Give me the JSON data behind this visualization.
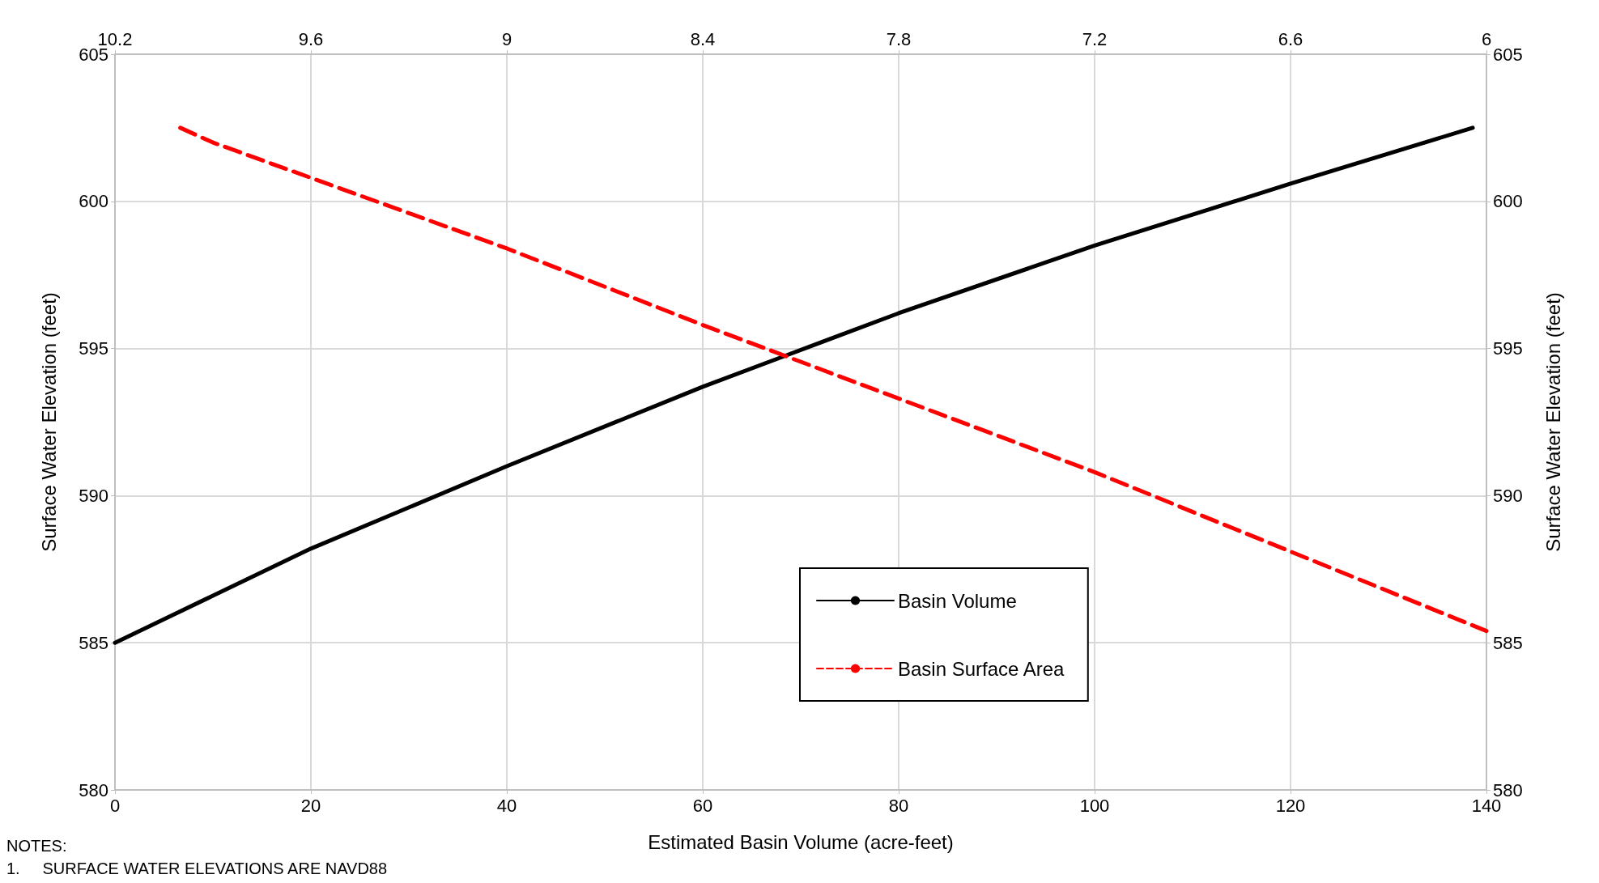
{
  "chart_data": {
    "type": "line",
    "xlabel": "Estimated Basin Volume (acre-feet)",
    "ylabel": "Surface Water Elevation (feet)",
    "y2label": "Surface Water Elevation (feet)",
    "xlim": [
      0,
      140
    ],
    "xticks": [
      0,
      20,
      40,
      60,
      80,
      100,
      120,
      140
    ],
    "x2lim": [
      10.2,
      6
    ],
    "x2ticks": [
      10.2,
      9.6,
      9,
      8.4,
      7.8,
      7.2,
      6.6,
      6
    ],
    "ylim": [
      580,
      605
    ],
    "yticks": [
      580,
      585,
      590,
      595,
      600,
      605
    ],
    "y2lim": [
      580,
      605
    ],
    "y2ticks": [
      580,
      585,
      590,
      595,
      600,
      605
    ],
    "grid": true,
    "legend": "bottom right",
    "marker": "none",
    "series": [
      {
        "name": "Basin Volume",
        "color": "#000000",
        "line_style": "solid",
        "x": [
          0,
          10,
          20,
          40,
          60,
          68,
          80,
          100,
          120,
          138.6
        ],
        "values": [
          585.0,
          586.6,
          588.2,
          591.0,
          593.7,
          594.7,
          596.2,
          598.5,
          600.6,
          602.5
        ]
      },
      {
        "name": "Basin Surface Area",
        "color": "#ff0000",
        "line_style": "dashed",
        "axis": "x2",
        "x": [
          10.0,
          9.9,
          9.6,
          9.0,
          8.4,
          7.8,
          7.2,
          6.6,
          6.0
        ],
        "values": [
          602.5,
          602.0,
          600.8,
          598.4,
          595.8,
          593.3,
          590.8,
          588.1,
          585.4
        ]
      }
    ],
    "annotations": [
      "NOTES:",
      "1.     SURFACE WATER ELEVATIONS ARE NAVD88"
    ]
  }
}
